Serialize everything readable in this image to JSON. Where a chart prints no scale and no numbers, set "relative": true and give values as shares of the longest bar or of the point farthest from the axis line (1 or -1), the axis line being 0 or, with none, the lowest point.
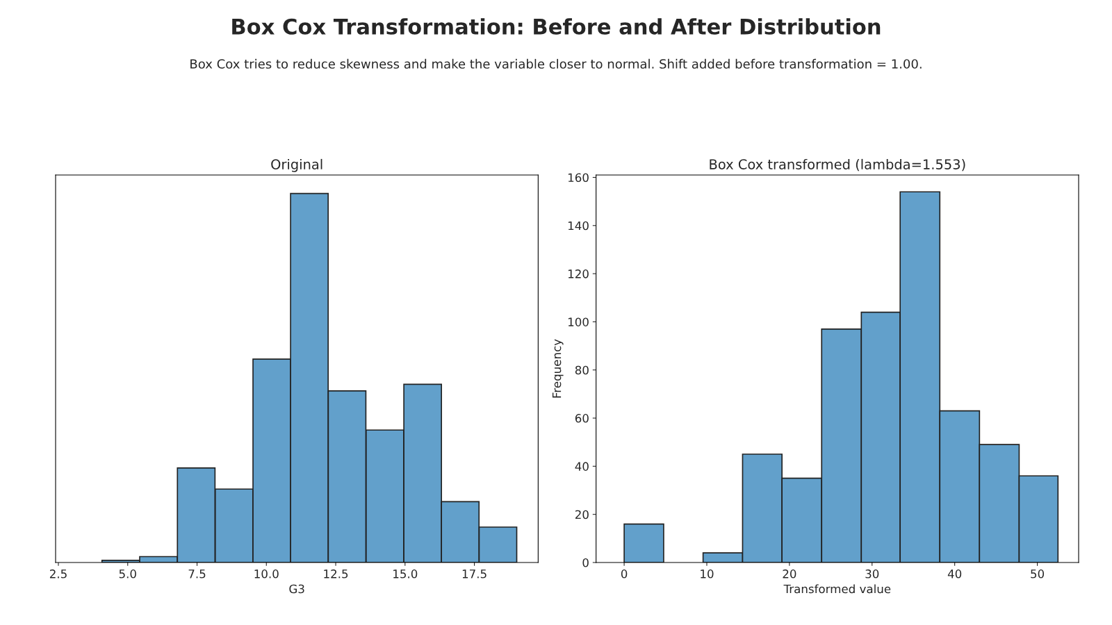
{
  "chart_data": [
    {
      "type": "bar",
      "title": "Original",
      "xlabel": "G3",
      "relative": true,
      "color": "#62a0cb",
      "x": [
        4.75,
        6.11,
        7.47,
        8.835,
        10.195,
        11.55,
        12.91,
        14.275,
        15.635,
        16.99,
        18.35
      ],
      "values": [
        0.006,
        0.016,
        0.256,
        0.199,
        0.551,
        1,
        0.465,
        0.359,
        0.483,
        0.165,
        0.096
      ],
      "xlim": [
        2.4,
        19.8
      ],
      "xticks": [
        {
          "value": 2.5,
          "label": "2.5"
        },
        {
          "value": 5,
          "label": "5.0"
        },
        {
          "value": 7.5,
          "label": "7.5"
        },
        {
          "value": 10,
          "label": "10.0"
        },
        {
          "value": 12.5,
          "label": "12.5"
        },
        {
          "value": 15,
          "label": "15.0"
        },
        {
          "value": 17.5,
          "label": "17.5"
        }
      ],
      "grid": false
    },
    {
      "type": "histogram",
      "title": "Box Cox transformed (lambda=1.553)",
      "xlabel": "Transformed value",
      "ylabel": "Frequency",
      "color": "#62a0cb",
      "bins": [
        0,
        4.78,
        9.55,
        14.33,
        19.1,
        23.9,
        28.7,
        33.4,
        38.2,
        43.0,
        47.8,
        52.5
      ],
      "values": [
        16,
        0,
        4,
        45,
        35,
        97,
        104,
        154,
        63,
        49,
        36
      ],
      "xlim": [
        -3.4,
        55
      ],
      "xticks": [
        0,
        10,
        20,
        30,
        40,
        50
      ],
      "ylim": [
        0,
        161
      ],
      "yticks": [
        0,
        20,
        40,
        60,
        80,
        100,
        120,
        140,
        160
      ],
      "grid": false
    },
    {
      "type": "other",
      "title": "Box Cox Transformation: Before and After Distribution",
      "subtitle": "Box Cox tries to reduce skewness and make the variable closer to normal. Shift added before transformation = 1.00."
    }
  ]
}
